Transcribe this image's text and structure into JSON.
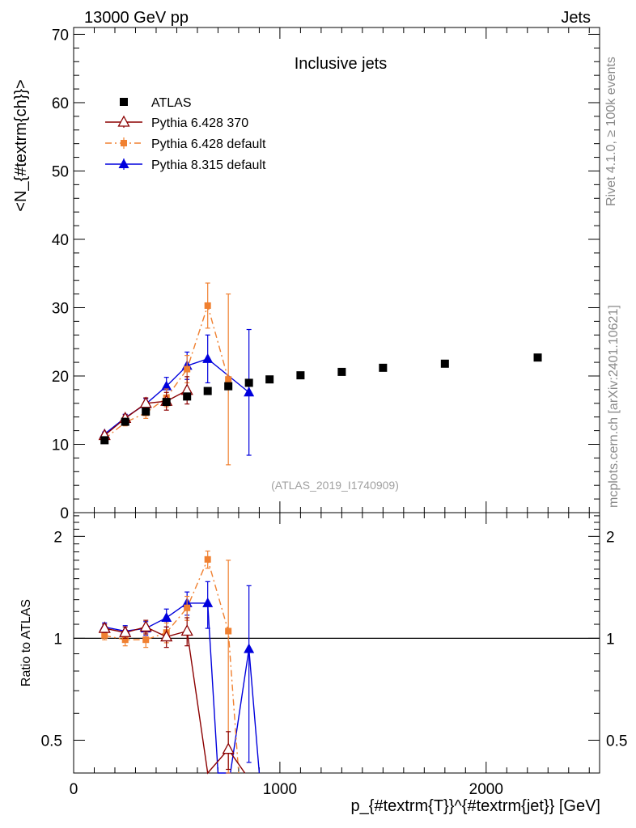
{
  "header": {
    "left_label": "13000 GeV pp",
    "right_label": "Jets"
  },
  "side_labels": {
    "rivet": "Rivet 4.1.0, ≥ 100k events",
    "mcplots": "mcplots.cern.ch [arXiv:2401.10621]"
  },
  "colors": {
    "atlas": "#000000",
    "pythia6_370": "#8b0000",
    "pythia6_default": "#f08030",
    "pythia8": "#0000dd",
    "watermark": "#a0a0a0"
  },
  "chart_data": [
    {
      "type": "line",
      "title": "Inclusive jets",
      "ylabel": "<N_{#textrm{ch}}>",
      "xlabel": "p_{#textrm{T}}^{#textrm{jet}} [GeV]",
      "xlim": [
        0,
        2550
      ],
      "ylim": [
        0,
        71
      ],
      "y_ticks": [
        0,
        10,
        20,
        30,
        40,
        50,
        60,
        70
      ],
      "x_ticks": [
        0,
        1000,
        2000
      ],
      "watermark": "(ATLAS_2019_I1740909)",
      "series": [
        {
          "name": "ATLAS",
          "marker": "square",
          "x": [
            150,
            250,
            350,
            450,
            550,
            650,
            750,
            850,
            950,
            1100,
            1300,
            1500,
            1800,
            2250
          ],
          "y": [
            10.6,
            13.3,
            14.8,
            16.2,
            17.0,
            17.8,
            18.5,
            19.0,
            19.5,
            20.1,
            20.6,
            21.2,
            21.8,
            22.7
          ]
        },
        {
          "name": "Pythia 6.428 370",
          "marker": "open-triangle",
          "x": [
            150,
            250,
            350,
            450,
            550
          ],
          "y": [
            11.3,
            13.8,
            16.0,
            16.3,
            17.9
          ],
          "err": [
            0.3,
            0.5,
            0.8,
            1.3,
            2.0
          ]
        },
        {
          "name": "Pythia 6.428 default",
          "marker": "small-square",
          "x": [
            150,
            250,
            350,
            450,
            550,
            650,
            750
          ],
          "y": [
            10.8,
            13.2,
            14.6,
            16.8,
            21.0,
            30.3,
            19.5
          ],
          "err": [
            0.3,
            0.5,
            0.8,
            1.3,
            2.0,
            3.3,
            12.5
          ]
        },
        {
          "name": "Pythia 8.315 default",
          "marker": "filled-triangle",
          "x": [
            150,
            250,
            350,
            450,
            550,
            650,
            850
          ],
          "y": [
            11.5,
            13.9,
            15.9,
            18.5,
            21.5,
            22.5,
            17.6
          ],
          "err": [
            0.3,
            0.5,
            0.8,
            1.3,
            2.0,
            3.5,
            9.2
          ]
        }
      ]
    },
    {
      "type": "line",
      "title": "",
      "ylabel": "Ratio to ATLAS",
      "xlabel": "p_{#textrm{T}}^{#textrm{jet}} [GeV]",
      "xlim": [
        0,
        2550
      ],
      "ylim": [
        0.4,
        2.35
      ],
      "y_ticks": [
        0.5,
        1,
        2
      ],
      "y_tick_labels": [
        "0.5",
        "1",
        "2"
      ],
      "x_ticks": [
        0,
        1000,
        2000
      ],
      "reference_line": 1,
      "series": [
        {
          "name": "Pythia 6.428 370",
          "x": [
            150,
            250,
            350,
            450,
            550,
            650,
            750,
            830
          ],
          "y": [
            1.07,
            1.04,
            1.08,
            1.01,
            1.05,
            0.25,
            0.47,
            0.25
          ],
          "err": [
            0.03,
            0.04,
            0.05,
            0.07,
            0.1,
            0,
            0.06,
            0
          ]
        },
        {
          "name": "Pythia 6.428 default",
          "x": [
            150,
            250,
            350,
            450,
            550,
            650,
            750,
            800
          ],
          "y": [
            1.02,
            0.99,
            0.99,
            1.04,
            1.23,
            1.71,
            1.05,
            0.3
          ],
          "err": [
            0.03,
            0.04,
            0.05,
            0.07,
            0.1,
            0.1,
            0.65,
            0
          ]
        },
        {
          "name": "Pythia 8.315 default",
          "x": [
            150,
            250,
            350,
            450,
            550,
            650,
            700,
            760,
            850,
            900
          ],
          "y": [
            1.08,
            1.05,
            1.07,
            1.15,
            1.27,
            1.27,
            0.25,
            0.25,
            0.93,
            0.25
          ],
          "err": [
            0.03,
            0.04,
            0.05,
            0.07,
            0.1,
            0.2,
            0,
            0,
            0.5,
            0
          ]
        }
      ]
    }
  ]
}
